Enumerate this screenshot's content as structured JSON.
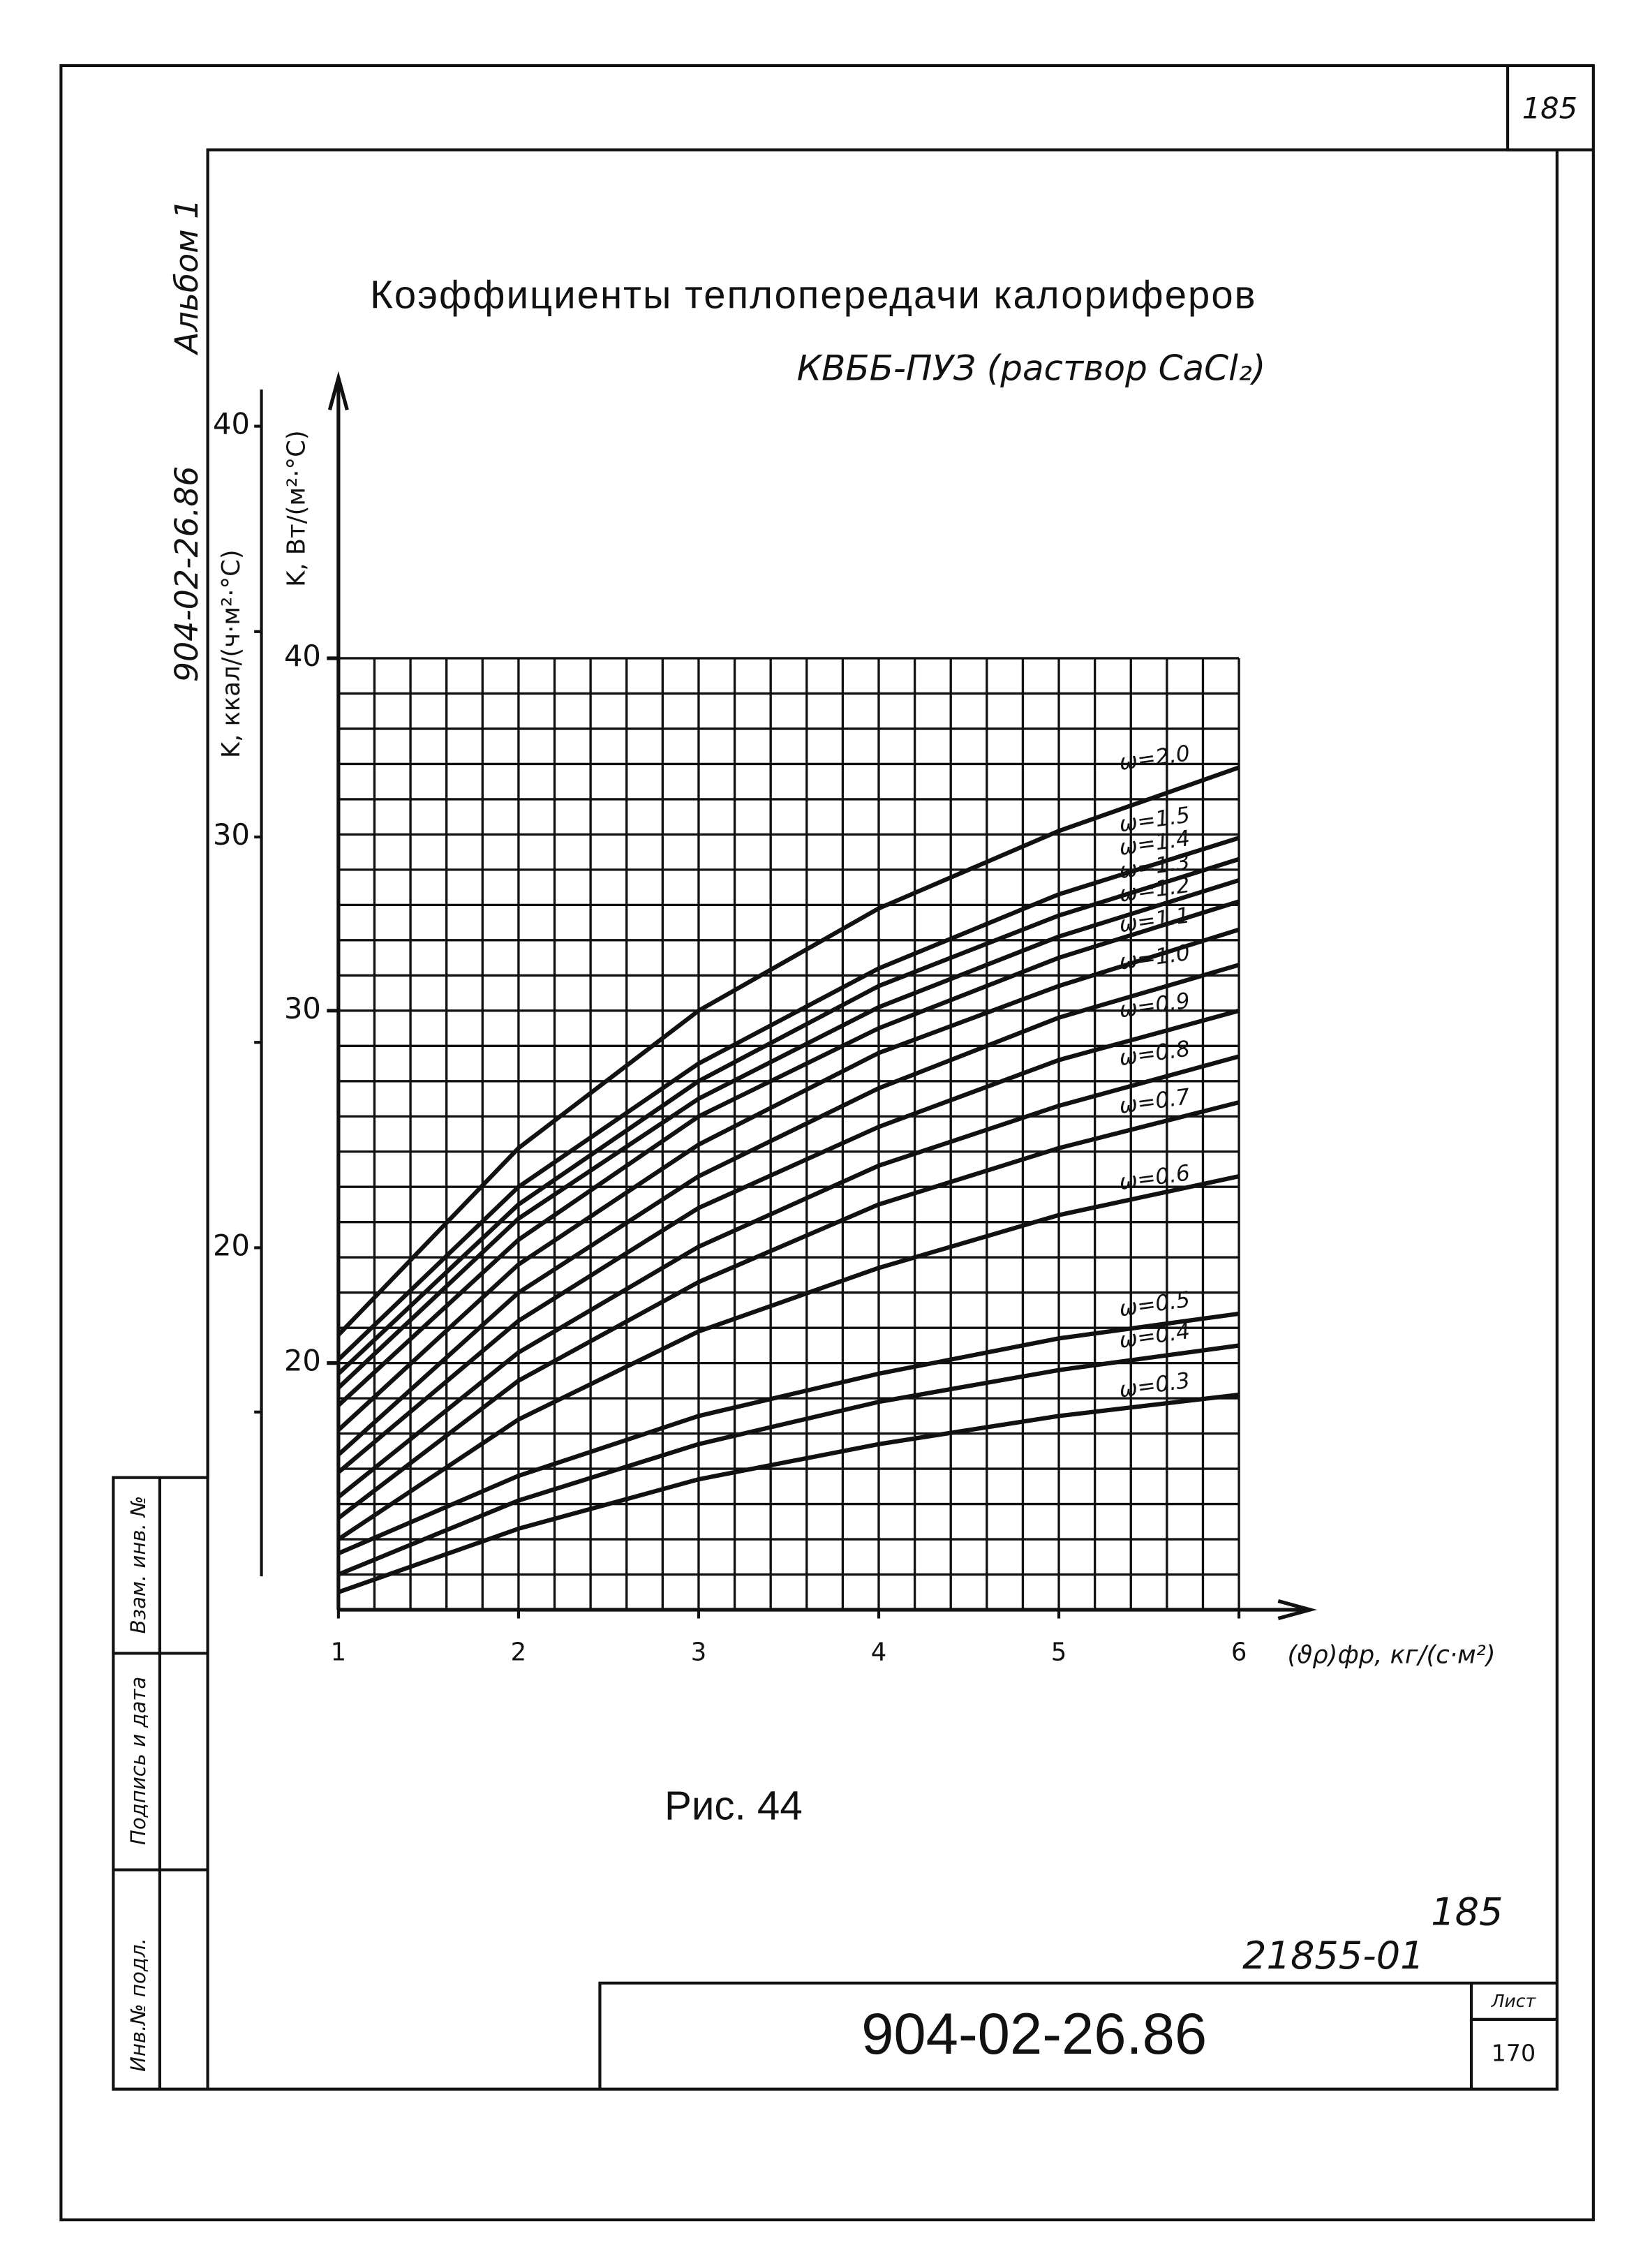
{
  "page_number": "185",
  "album": "Альбом 1",
  "side_code": "904-02-26.86",
  "figure_caption": "Рис. 44",
  "handwritten_number": "185",
  "order_number": "21855-01",
  "stamp": {
    "code": "904-02-26.86",
    "sheet_label": "Лист",
    "sheet": "170"
  },
  "margin_stamp": [
    "Инв.№ подл.",
    "Подпись и дата",
    "Взам. инв. №"
  ],
  "chart_data": {
    "type": "line",
    "title": "Коэффициенты теплопередачи калориферов",
    "subtitle": "КВББ-ПУЗ    (раствор CaCl₂)",
    "x_label": "(ϑρ)фр, кг/(с·м²)",
    "y_label": "K, Вт/(м²·°С)",
    "y2_label": "K, ккал/(ч·м²·°С)",
    "x": [
      1,
      2,
      3,
      4,
      5,
      6
    ],
    "xlim": [
      1,
      6
    ],
    "xticks": [
      1,
      2,
      3,
      4,
      5,
      6
    ],
    "xminor": [
      1,
      1.2,
      1.4,
      1.6,
      1.8,
      2,
      2.2,
      2.4,
      2.6,
      2.8,
      3,
      3.2,
      3.4,
      3.6,
      3.8,
      4,
      4.2,
      4.4,
      4.6,
      4.8,
      5,
      5.2,
      5.4,
      5.6,
      5.8,
      6
    ],
    "ylim": [
      13,
      40
    ],
    "yticks": [
      20,
      30,
      40
    ],
    "yminor": [
      13,
      14,
      15,
      16,
      17,
      18,
      19,
      20,
      21,
      22,
      23,
      24,
      25,
      26,
      27,
      28,
      29,
      30,
      31,
      32,
      33,
      34,
      35,
      36,
      37,
      38,
      39,
      40
    ],
    "y2lim": [
      12,
      41
    ],
    "y2ticks": [
      20,
      30,
      40
    ],
    "y2minor": [
      16,
      25,
      35
    ],
    "grid": true,
    "series": [
      {
        "name": "ω=2.0",
        "color": "#111",
        "values": [
          20.8,
          26.1,
          30.0,
          32.9,
          35.1,
          36.9
        ]
      },
      {
        "name": "ω=1.5",
        "color": "#111",
        "values": [
          20.1,
          25.0,
          28.5,
          31.2,
          33.3,
          34.9
        ]
      },
      {
        "name": "ω=1.4",
        "color": "#111",
        "values": [
          19.7,
          24.5,
          28.0,
          30.7,
          32.7,
          34.3
        ]
      },
      {
        "name": "ω=1.3",
        "color": "#111",
        "values": [
          19.3,
          24.1,
          27.5,
          30.1,
          32.1,
          33.7
        ]
      },
      {
        "name": "ω=1.2",
        "color": "#111",
        "values": [
          18.8,
          23.5,
          27.0,
          29.5,
          31.5,
          33.1
        ]
      },
      {
        "name": "ω=1.1",
        "color": "#111",
        "values": [
          18.1,
          22.8,
          26.2,
          28.8,
          30.7,
          32.3
        ]
      },
      {
        "name": "ω=1.0",
        "color": "#111",
        "values": [
          17.4,
          22.0,
          25.3,
          27.8,
          29.8,
          31.3
        ]
      },
      {
        "name": "ω=0.9",
        "color": "#111",
        "values": [
          16.9,
          21.2,
          24.4,
          26.7,
          28.6,
          30.0
        ]
      },
      {
        "name": "ω=0.8",
        "color": "#111",
        "values": [
          16.2,
          20.3,
          23.3,
          25.6,
          27.3,
          28.7
        ]
      },
      {
        "name": "ω=0.7",
        "color": "#111",
        "values": [
          15.6,
          19.5,
          22.3,
          24.5,
          26.1,
          27.4
        ]
      },
      {
        "name": "ω=0.6",
        "color": "#111",
        "values": [
          15.0,
          18.4,
          20.9,
          22.7,
          24.2,
          25.3
        ]
      },
      {
        "name": "ω=0.5",
        "color": "#111",
        "values": [
          14.6,
          16.8,
          18.5,
          19.7,
          20.7,
          21.4
        ]
      },
      {
        "name": "ω=0.4",
        "color": "#111",
        "values": [
          14.0,
          16.1,
          17.7,
          18.9,
          19.8,
          20.5
        ]
      },
      {
        "name": "ω=0.3",
        "color": "#111",
        "values": [
          13.5,
          15.3,
          16.7,
          17.7,
          18.5,
          19.1
        ]
      }
    ]
  }
}
